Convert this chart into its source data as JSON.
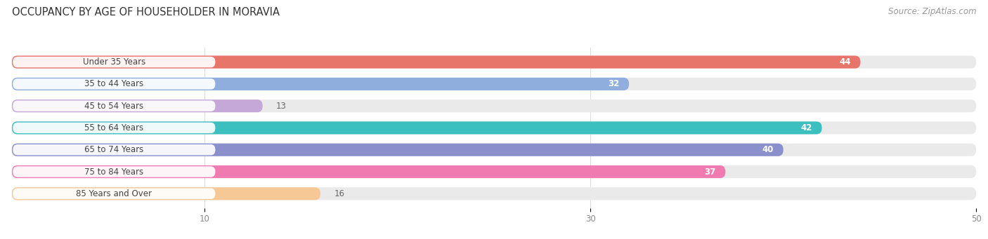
{
  "title": "OCCUPANCY BY AGE OF HOUSEHOLDER IN MORAVIA",
  "source": "Source: ZipAtlas.com",
  "categories": [
    "Under 35 Years",
    "35 to 44 Years",
    "45 to 54 Years",
    "55 to 64 Years",
    "65 to 74 Years",
    "75 to 84 Years",
    "85 Years and Over"
  ],
  "values": [
    44,
    32,
    13,
    42,
    40,
    37,
    16
  ],
  "bar_colors": [
    "#E8756A",
    "#8FAEDD",
    "#C5A8D8",
    "#3BBFBF",
    "#8B8FCC",
    "#F07BB0",
    "#F5C896"
  ],
  "bar_bg_color": "#EAEAEA",
  "xlim": [
    0,
    50
  ],
  "xticks": [
    10,
    30,
    50
  ],
  "bar_height": 0.58,
  "fig_bg_color": "#FFFFFF",
  "title_fontsize": 10.5,
  "label_fontsize": 8.5,
  "value_fontsize": 8.5,
  "source_fontsize": 8.5,
  "value_threshold": 20
}
